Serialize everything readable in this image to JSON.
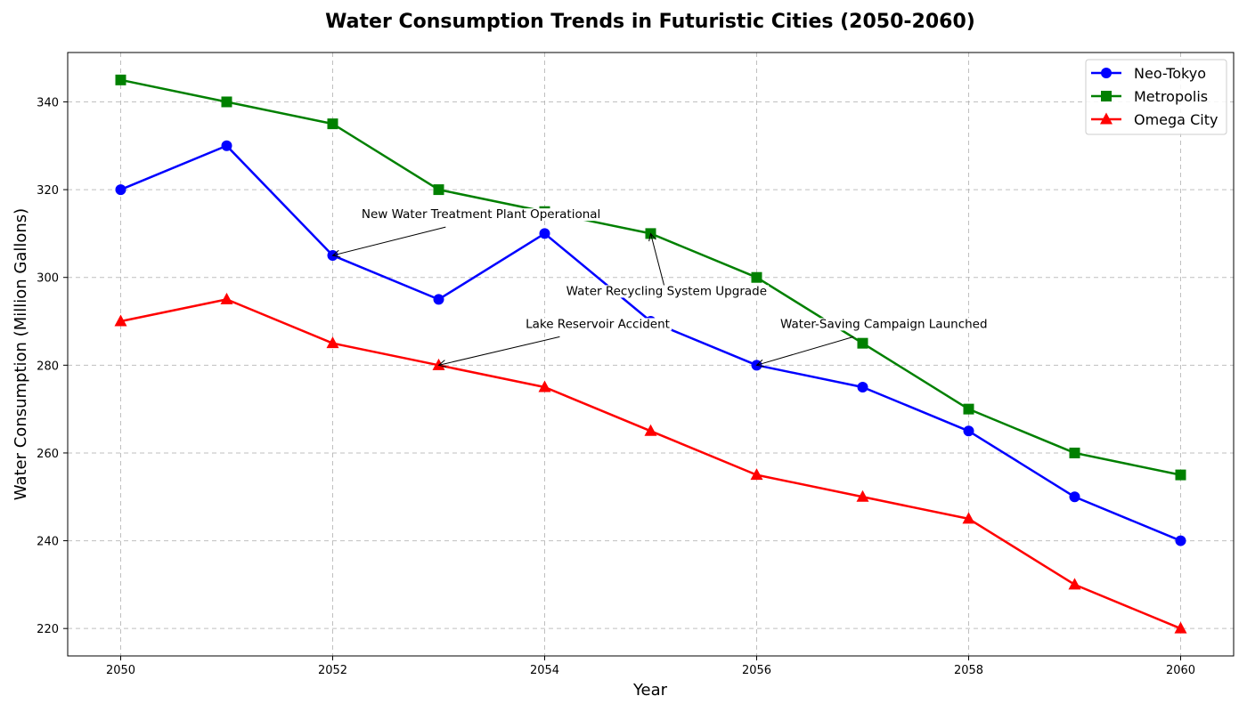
{
  "chart_data": {
    "type": "line",
    "title": "Water Consumption Trends in Futuristic Cities (2050-2060)",
    "xlabel": "Year",
    "ylabel": "Water Consumption (Million Gallons)",
    "x": [
      2050,
      2051,
      2052,
      2053,
      2054,
      2055,
      2056,
      2057,
      2058,
      2059,
      2060
    ],
    "xticks": [
      2050,
      2052,
      2054,
      2056,
      2058,
      2060
    ],
    "yticks": [
      220,
      240,
      260,
      280,
      300,
      320,
      340
    ],
    "xlim": [
      2049.5,
      2060.5
    ],
    "ylim": [
      213.75,
      351.25
    ],
    "grid": true,
    "legend_position": "top-right",
    "series": [
      {
        "name": "Neo-Tokyo",
        "color": "#0000ff",
        "marker": "circle",
        "values": [
          320,
          330,
          305,
          295,
          310,
          290,
          280,
          275,
          265,
          250,
          240
        ]
      },
      {
        "name": "Metropolis",
        "color": "#008000",
        "marker": "square",
        "values": [
          345,
          340,
          335,
          320,
          315,
          310,
          300,
          285,
          270,
          260,
          255
        ]
      },
      {
        "name": "Omega City",
        "color": "#ff0000",
        "marker": "triangle",
        "values": [
          290,
          295,
          285,
          280,
          275,
          265,
          255,
          250,
          245,
          230,
          220
        ]
      }
    ],
    "annotations": [
      {
        "text": "New Water Treatment Plant Operational",
        "x": 2052,
        "y": 305,
        "text_x": 2053.4,
        "text_y": 313.5
      },
      {
        "text": "Water Recycling System Upgrade",
        "x": 2055,
        "y": 310,
        "text_x": 2055.15,
        "text_y": 296
      },
      {
        "text": "Lake Reservoir Accident",
        "x": 2053,
        "y": 280,
        "text_x": 2054.5,
        "text_y": 288.5
      },
      {
        "text": "Water-Saving Campaign Launched",
        "x": 2056,
        "y": 280,
        "text_x": 2057.2,
        "text_y": 288.5
      }
    ]
  }
}
